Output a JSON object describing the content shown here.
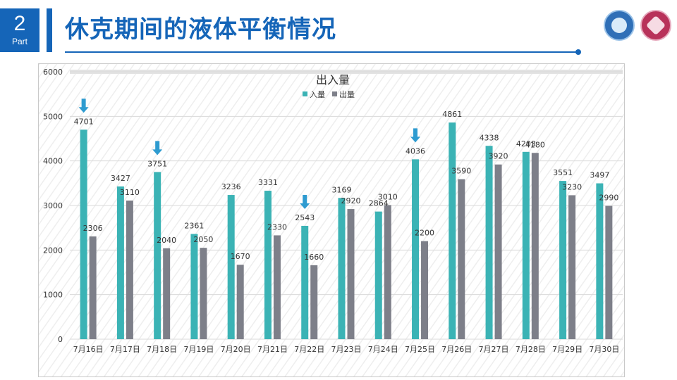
{
  "header": {
    "part_number": "2",
    "part_label": "Part",
    "title": "休克期间的液体平衡情况"
  },
  "logos": {
    "left": "hospital-logo-blue",
    "right": "hospital-logo-red"
  },
  "colors": {
    "brand": "#1565b8",
    "intake": "#3bb3b5",
    "output": "#7d7f89",
    "arrow": "#2e9bd0"
  },
  "chart_data": {
    "type": "bar",
    "title": "出入量",
    "categories": [
      "7月16日",
      "7月17日",
      "7月18日",
      "7月19日",
      "7月20日",
      "7月21日",
      "7月22日",
      "7月23日",
      "7月24日",
      "7月25日",
      "7月26日",
      "7月27日",
      "7月28日",
      "7月29日",
      "7月30日"
    ],
    "series": [
      {
        "name": "入量",
        "color": "#3bb3b5",
        "values": [
          4701,
          3427,
          3751,
          2361,
          3236,
          3331,
          2543,
          3169,
          2864,
          4036,
          4861,
          4338,
          4203,
          3551,
          3497
        ]
      },
      {
        "name": "出量",
        "color": "#7d7f89",
        "values": [
          2306,
          3110,
          2040,
          2050,
          1670,
          2330,
          1660,
          2920,
          3010,
          2200,
          3590,
          3920,
          4180,
          3230,
          2990
        ]
      }
    ],
    "ylim": [
      0,
      6000
    ],
    "yticks": [
      0,
      1000,
      2000,
      3000,
      4000,
      5000,
      6000
    ],
    "legend_position": "top-center",
    "grid": true,
    "annotations": [
      {
        "type": "down-arrow",
        "category": "7月16日"
      },
      {
        "type": "down-arrow",
        "category": "7月18日"
      },
      {
        "type": "down-arrow",
        "category": "7月22日"
      },
      {
        "type": "down-arrow",
        "category": "7月25日"
      }
    ]
  }
}
